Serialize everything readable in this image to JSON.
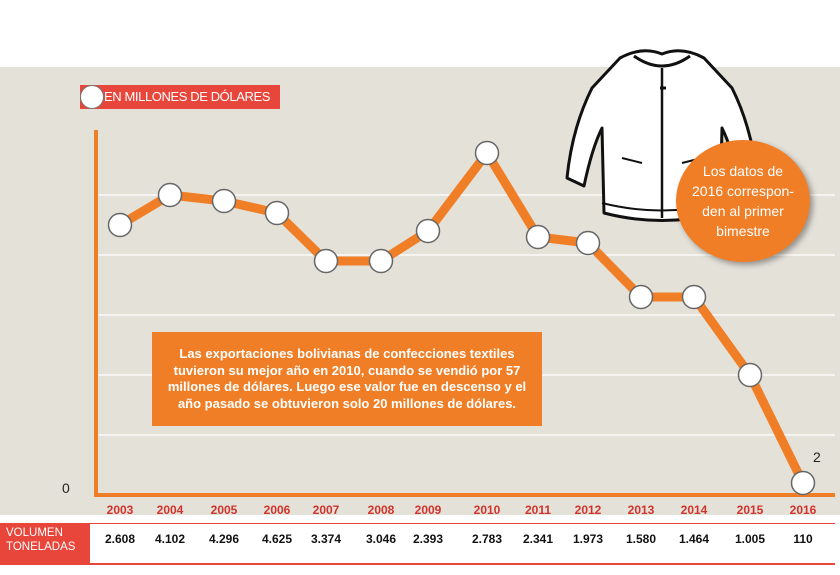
{
  "chart_data": {
    "type": "line",
    "title": "EN MILLONES DE DÓLARES",
    "xlabel": "",
    "ylabel": "",
    "categories": [
      "2003",
      "2004",
      "2005",
      "2006",
      "2007",
      "2008",
      "2009",
      "2010",
      "2011",
      "2012",
      "2013",
      "2014",
      "2015",
      "2016"
    ],
    "series": [
      {
        "values": [
          45,
          50,
          49,
          47,
          39,
          39,
          44,
          57,
          43,
          42,
          33,
          33,
          20,
          2
        ]
      }
    ],
    "ylim": [
      0,
      60
    ],
    "y_label_min": "0",
    "end_label": "2",
    "grid": true,
    "legend": "top-left",
    "volume": {
      "label_line1": "VOLUMEN",
      "label_line2": "TONELADAS",
      "values": [
        "2.608",
        "4.102",
        "4.296",
        "4.625",
        "3.374",
        "3.046",
        "2.393",
        "2.783",
        "2.341",
        "1.973",
        "1.580",
        "1.464",
        "1.005",
        "110"
      ]
    }
  },
  "note_text": "Las exportaciones bolivianas de confecciones textiles tuvieron su mejor año en 2010, cuando se vendió por 57 millones de dólares. Luego ese valor fue en descenso y el año pasado se obtuvieron solo 20 millones de dólares.",
  "callout_text": "Los datos de 2016 correspon-den al primer bimestre",
  "colors": {
    "line": "#f07e26",
    "accent_red": "#e8463a",
    "panel": "#e4e1d9",
    "year_text": "#d0342c"
  },
  "icons": {
    "illustration": "jacket-icon",
    "marker": "circle-marker-icon"
  }
}
